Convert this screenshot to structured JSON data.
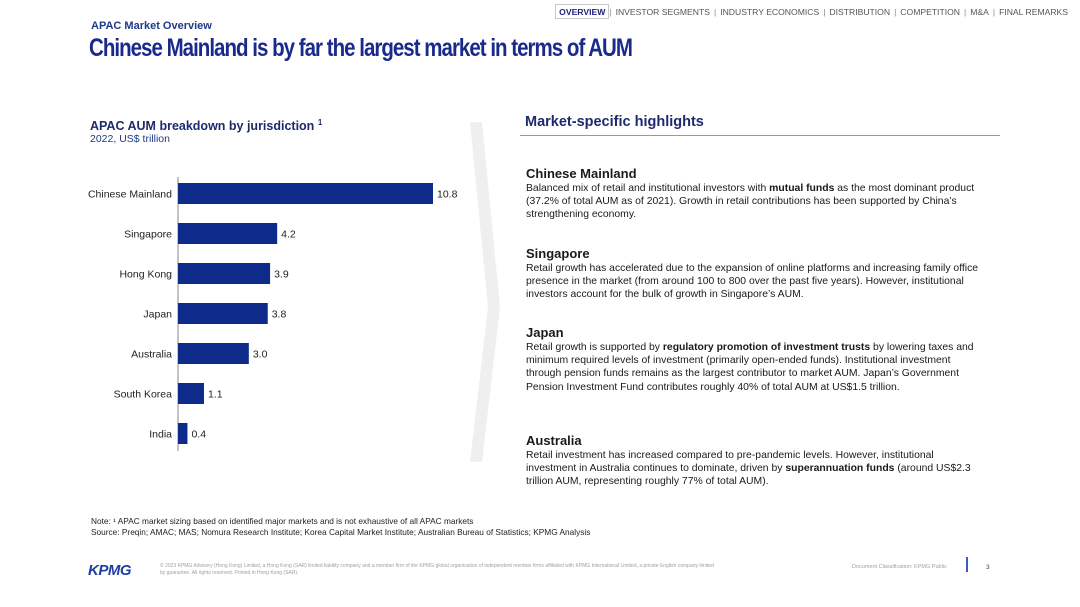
{
  "nav": {
    "items": [
      {
        "label": "OVERVIEW",
        "active": true
      },
      {
        "label": "INVESTOR SEGMENTS",
        "active": false
      },
      {
        "label": "INDUSTRY ECONOMICS",
        "active": false
      },
      {
        "label": "DISTRIBUTION",
        "active": false
      },
      {
        "label": "COMPETITION",
        "active": false
      },
      {
        "label": "M&A",
        "active": false
      },
      {
        "label": "FINAL REMARKS",
        "active": false
      }
    ]
  },
  "header": {
    "section": "APAC Market Overview",
    "title": "Chinese Mainland is by far the largest market in terms of AUM"
  },
  "chart_data": {
    "type": "bar",
    "orientation": "horizontal",
    "title": "APAC AUM breakdown by jurisdiction",
    "title_footnote": "1",
    "subtitle": "2022, US$ trillion",
    "categories": [
      "Chinese Mainland",
      "Singapore",
      "Hong Kong",
      "Japan",
      "Australia",
      "South Korea",
      "India"
    ],
    "values": [
      10.8,
      4.2,
      3.9,
      3.8,
      3.0,
      1.1,
      0.4
    ],
    "value_labels": [
      "10.8",
      "4.2",
      "3.9",
      "3.8",
      "3.0",
      "1.1",
      "0.4"
    ],
    "xlim": [
      0,
      11.8
    ],
    "bar_color": "#0e2a8a",
    "grid": false
  },
  "highlights": {
    "header": "Market-specific highlights",
    "items": [
      {
        "name": "Chinese Mainland",
        "parts": [
          {
            "t": "Balanced mix of retail and institutional investors with ",
            "b": false
          },
          {
            "t": "mutual funds",
            "b": true
          },
          {
            "t": " as the most dominant product (37.2% of total AUM as of 2021). Growth in retail contributions has been supported by China’s strengthening economy.",
            "b": false
          }
        ]
      },
      {
        "name": "Singapore",
        "parts": [
          {
            "t": "Retail growth has accelerated due to the expansion of online platforms and increasing family office presence in the market (from around 100 to 800 over the past five years). However, institutional investors account for the bulk of growth in Singapore’s AUM.",
            "b": false
          }
        ]
      },
      {
        "name": "Japan",
        "parts": [
          {
            "t": "Retail growth is supported by ",
            "b": false
          },
          {
            "t": "regulatory promotion of investment trusts",
            "b": true
          },
          {
            "t": " by lowering taxes and minimum required levels of investment (primarily open-ended funds). Institutional investment through pension funds remains as the largest contributor to market AUM. Japan’s Government Pension Investment Fund contributes roughly 40% of total AUM at US$1.5 trillion.",
            "b": false
          }
        ]
      },
      {
        "name": "Australia",
        "parts": [
          {
            "t": "Retail investment has increased compared to pre-pandemic levels. However, institutional investment in Australia continues to dominate, driven by ",
            "b": false
          },
          {
            "t": "superannuation funds",
            "b": true
          },
          {
            "t": " (around US$2.3 trillion AUM, representing roughly 77% of total AUM).",
            "b": false
          }
        ]
      }
    ]
  },
  "notes": {
    "note": "Note: ¹ APAC market sizing based on identified major markets and is not exhaustive of all APAC markets",
    "source": "Source: Preqin; AMAC; MAS; Nomura Research Institute; Korea Capital Market Institute; Australian Bureau of Statistics; KPMG Analysis"
  },
  "footer": {
    "logo": "KPMG",
    "legal": "© 2023 KPMG Advisory (Hong Kong) Limited, a Hong Kong (SAR) limited liability company and a member firm of the KPMG global organisation of independent member firms affiliated with KPMG International Limited, a private English company limited by guarantee. All rights reserved. Printed in Hong Kong (SAR).",
    "classification": "Document Classification: KPMG Public",
    "page": "3"
  }
}
